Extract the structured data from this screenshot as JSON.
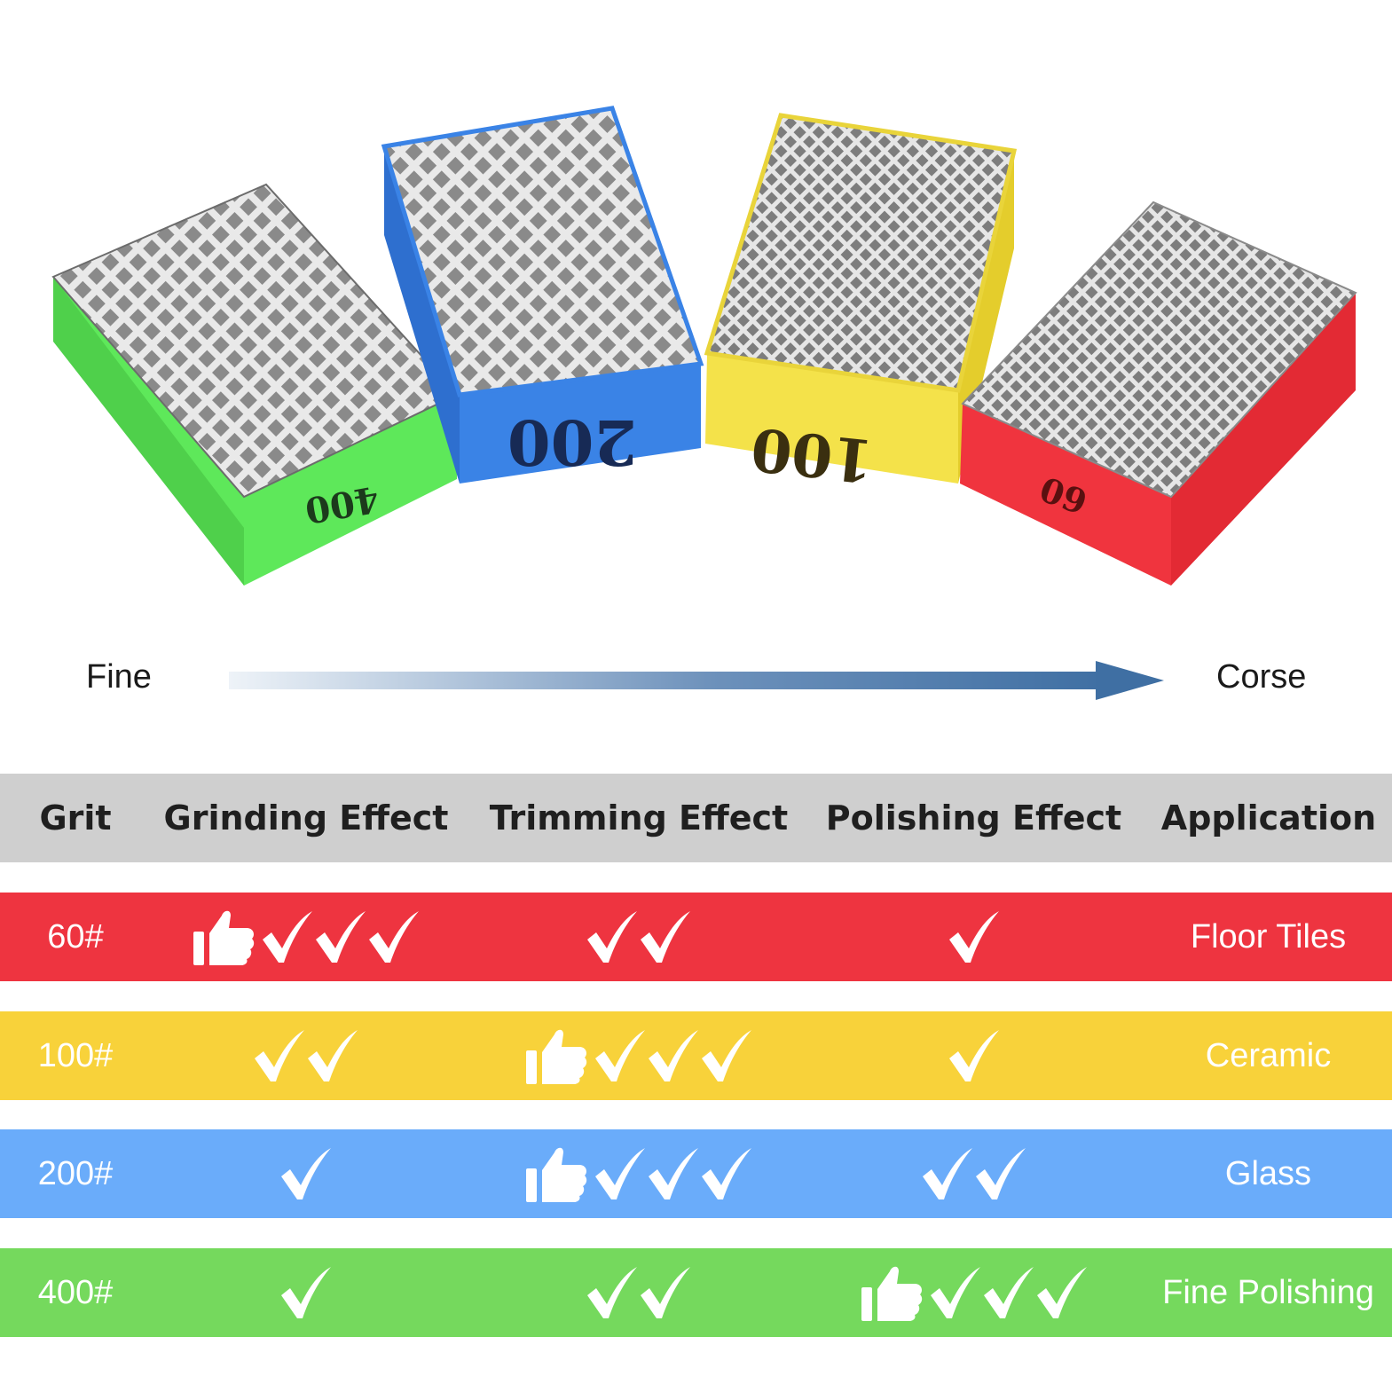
{
  "pads": [
    {
      "label": "400",
      "color": "#5ee85a"
    },
    {
      "label": "200",
      "color": "#3a83e6"
    },
    {
      "label": "100",
      "color": "#f4e24a"
    },
    {
      "label": "60",
      "color": "#f0343e"
    }
  ],
  "scale": {
    "left_label": "Fine",
    "right_label": "Corse",
    "arrow_color": "#3f6fa3"
  },
  "table": {
    "headers": [
      "Grit",
      "Grinding Effect",
      "Trimming Effect",
      "Polishing Effect",
      "Application"
    ],
    "header_bg": "#cfcfcf",
    "rows": [
      {
        "grit": "60#",
        "color": "#ee3440",
        "grinding": {
          "checks": 3,
          "best": true
        },
        "trimming": {
          "checks": 2,
          "best": false
        },
        "polishing": {
          "checks": 1,
          "best": false
        },
        "application": "Floor Tiles"
      },
      {
        "grit": "100#",
        "color": "#f8d23a",
        "grinding": {
          "checks": 2,
          "best": false
        },
        "trimming": {
          "checks": 3,
          "best": true
        },
        "polishing": {
          "checks": 1,
          "best": false
        },
        "application": "Ceramic"
      },
      {
        "grit": "200#",
        "color": "#6aacfa",
        "grinding": {
          "checks": 1,
          "best": false
        },
        "trimming": {
          "checks": 3,
          "best": true
        },
        "polishing": {
          "checks": 2,
          "best": false
        },
        "application": "Glass"
      },
      {
        "grit": "400#",
        "color": "#75d95d",
        "grinding": {
          "checks": 1,
          "best": false
        },
        "trimming": {
          "checks": 2,
          "best": false
        },
        "polishing": {
          "checks": 3,
          "best": true
        },
        "application": "Fine Polishing"
      }
    ]
  }
}
